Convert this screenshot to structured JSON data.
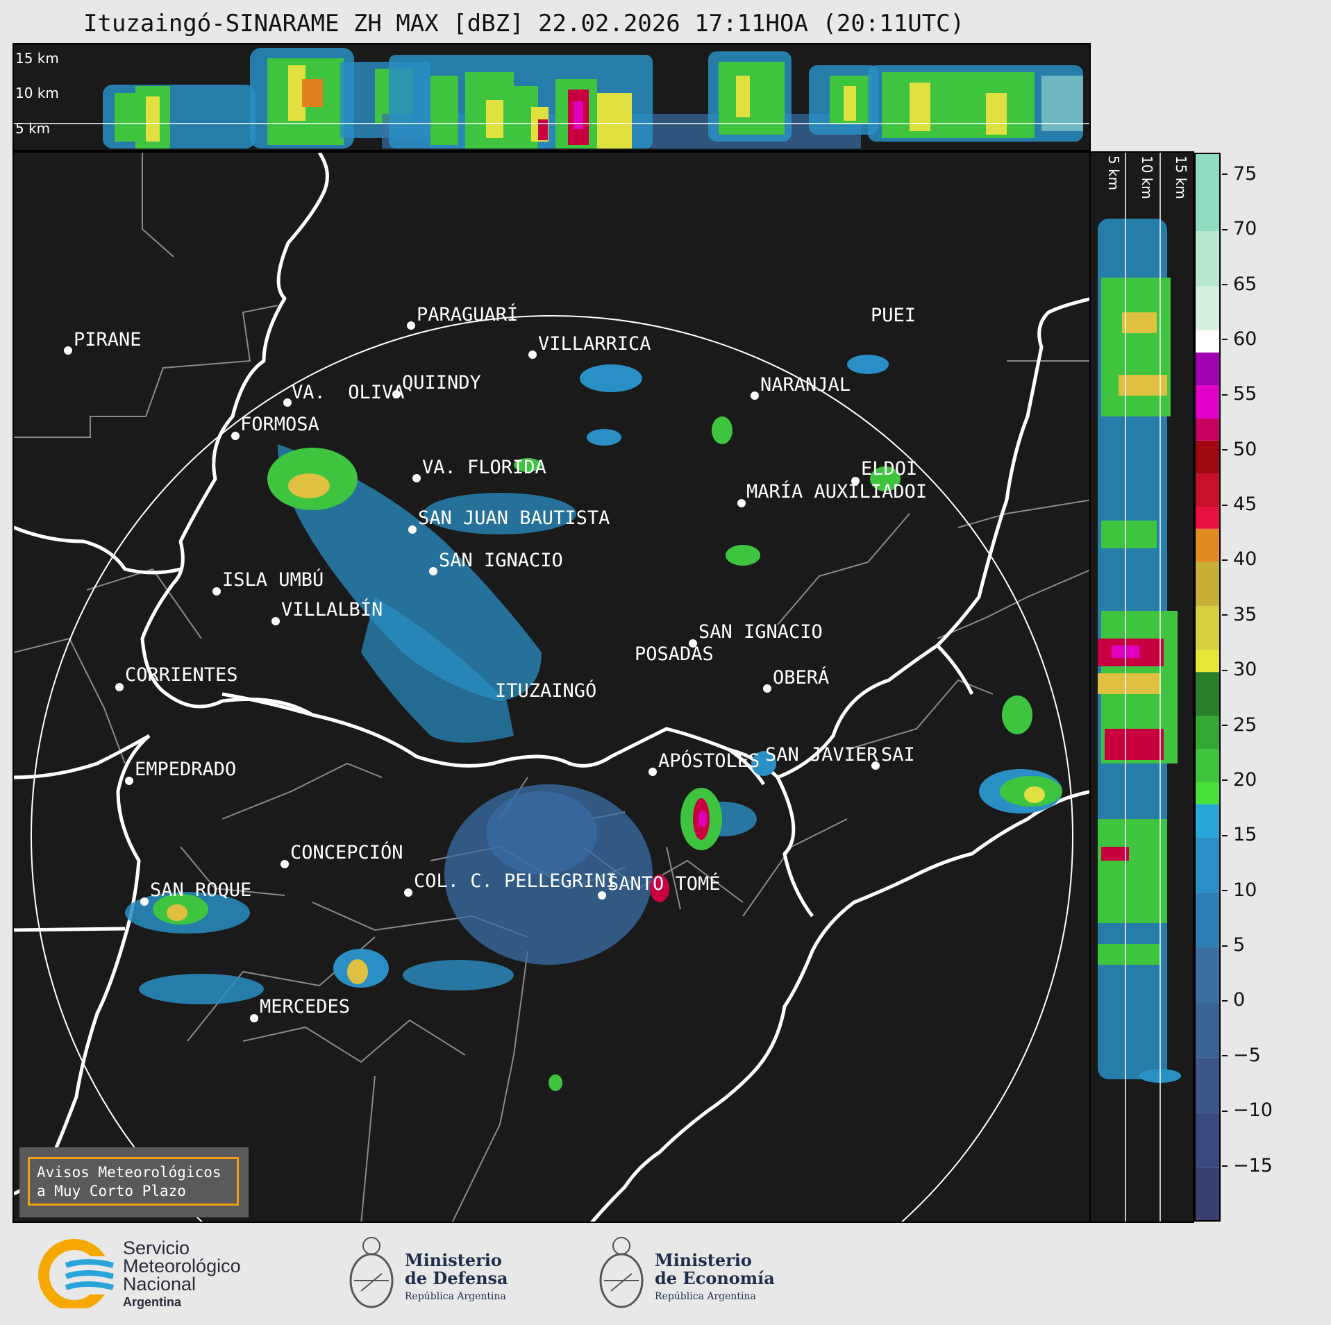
{
  "title": "Ituzaingó-SINARAME ZH MAX [dBZ] 22.02.2026 17:11HOA (20:11UTC)",
  "top_profile": {
    "altitude_labels": [
      "15 km",
      "10 km",
      "5 km"
    ]
  },
  "side_profile": {
    "altitude_labels": [
      "5 km",
      "10 km",
      "15 km"
    ]
  },
  "colorbar": {
    "unit": "dBZ",
    "ticks": [
      "75",
      "70",
      "65",
      "60",
      "55",
      "50",
      "45",
      "40",
      "35",
      "30",
      "25",
      "20",
      "15",
      "10",
      "5",
      "0",
      "−5",
      "−10",
      "−15"
    ],
    "range": [
      -20,
      77
    ]
  },
  "cities": [
    "PIRANE",
    "PARAGUARÍ",
    "VILLARRICA",
    "QUIINDY",
    "VA.  OLIVA",
    "FORMOSA",
    "NARANJAL",
    "PUEI",
    "VA. FLORIDA",
    "ELDOI",
    "MARÍA AUXILIADOI",
    "SAN JUAN BAUTISTA",
    "SAN IGNACIO",
    "ISLA UMBÚ",
    "VILLALBÍN",
    "SAN IGNACIO",
    "POSADAS",
    "CORRIENTES",
    "ITUZAINGÓ",
    "OBERÁ",
    "EMPEDRADO",
    "APÓSTOLES",
    "SAN JAVIER",
    "SAI",
    "CONCEPCIÓN",
    "COL. C. PELLEGRINI",
    "SANTO TOMÉ",
    "SAN ROQUE",
    "MERCEDES"
  ],
  "avisos": {
    "line1": "Avisos Meteorológicos",
    "line2": "a Muy Corto Plazo"
  },
  "logos": {
    "smn": {
      "line1": "Servicio",
      "line2": "Meteorológico",
      "line3": "Nacional",
      "line4": "Argentina"
    },
    "defensa": {
      "line1": "Ministerio",
      "line2": "de Defensa",
      "line3": "República Argentina"
    },
    "economia": {
      "line1": "Ministerio",
      "line2": "de Economía",
      "line3": "República Argentina"
    }
  }
}
